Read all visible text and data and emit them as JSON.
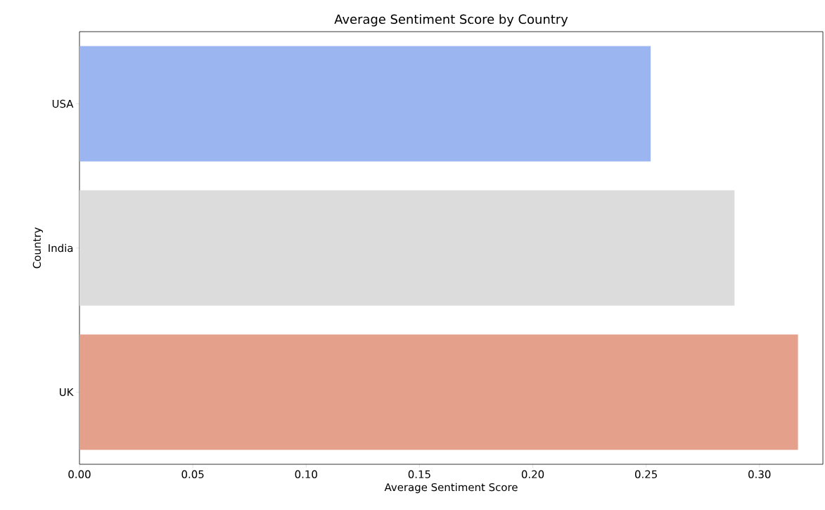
{
  "chart_data": {
    "type": "bar",
    "orientation": "horizontal",
    "title": "Average Sentiment Score by Country",
    "xlabel": "Average Sentiment Score",
    "ylabel": "Country",
    "categories": [
      "USA",
      "India",
      "UK"
    ],
    "values": [
      0.252,
      0.289,
      0.317
    ],
    "colors": [
      "#9ab5f0",
      "#dcdcdc",
      "#e4a08a"
    ],
    "xlim": [
      0,
      0.328
    ],
    "xticks": [
      {
        "value": 0,
        "label": "0.00"
      },
      0.05,
      {
        "value": 0.1,
        "label": "0.10"
      },
      0.15,
      {
        "value": 0.2,
        "label": "0.20"
      },
      0.25,
      {
        "value": 0.3,
        "label": "0.30"
      }
    ]
  }
}
